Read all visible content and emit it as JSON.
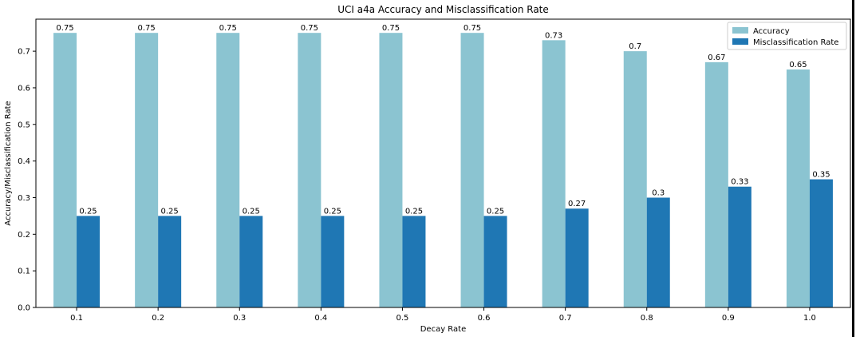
{
  "chart_data": {
    "type": "bar",
    "title": "UCI a4a Accuracy and Misclassification Rate",
    "xlabel": "Decay Rate",
    "ylabel": "Accuracy/Misclassification Rate",
    "categories": [
      "0.1",
      "0.2",
      "0.3",
      "0.4",
      "0.5",
      "0.6",
      "0.7",
      "0.8",
      "0.9",
      "1.0"
    ],
    "series": [
      {
        "name": "Accuracy",
        "color": "#8bc4d1",
        "values": [
          0.75,
          0.75,
          0.75,
          0.75,
          0.75,
          0.75,
          0.73,
          0.7,
          0.67,
          0.65
        ],
        "labels": [
          "0.75",
          "0.75",
          "0.75",
          "0.75",
          "0.75",
          "0.75",
          "0.73",
          "0.7",
          "0.67",
          "0.65"
        ]
      },
      {
        "name": "Misclassification Rate",
        "color": "#1f77b4",
        "values": [
          0.25,
          0.25,
          0.25,
          0.25,
          0.25,
          0.25,
          0.27,
          0.3,
          0.33,
          0.35
        ],
        "labels": [
          "0.25",
          "0.25",
          "0.25",
          "0.25",
          "0.25",
          "0.25",
          "0.27",
          "0.3",
          "0.33",
          "0.35"
        ]
      }
    ],
    "ylim": [
      0,
      0.7875
    ],
    "yticks": [
      "0.0",
      "0.1",
      "0.2",
      "0.3",
      "0.4",
      "0.5",
      "0.6",
      "0.7"
    ],
    "grid": false,
    "legend_position": "top-right"
  }
}
